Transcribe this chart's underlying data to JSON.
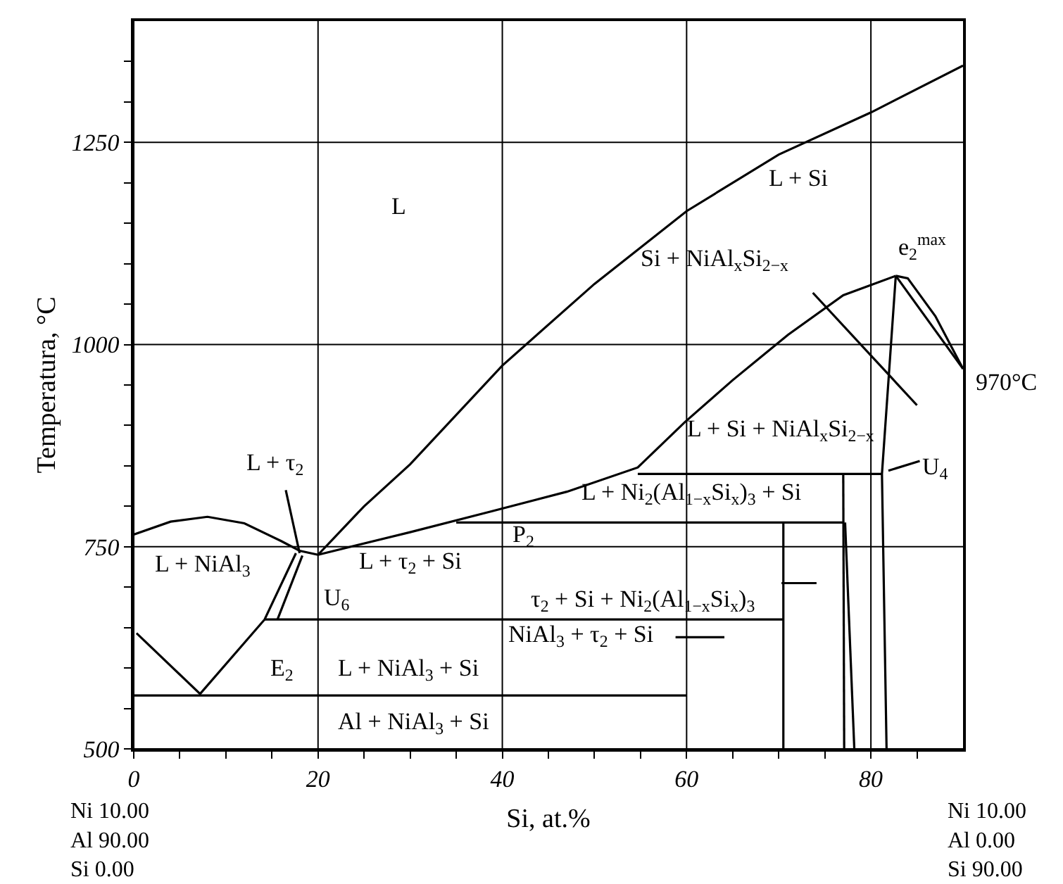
{
  "chart_data": {
    "type": "line",
    "xlabel": "Si, at.%",
    "ylabel": "Temperatura, °C",
    "xlim": [
      0,
      90
    ],
    "ylim": [
      500,
      1400
    ],
    "xticks": [
      0,
      {
        "value": 5,
        "label": null
      },
      {
        "value": 10,
        "label": null
      },
      {
        "value": 15,
        "label": null
      },
      20,
      {
        "value": 25,
        "label": null
      },
      {
        "value": 30,
        "label": null
      },
      {
        "value": 35,
        "label": null
      },
      40,
      {
        "value": 45,
        "label": null
      },
      {
        "value": 50,
        "label": null
      },
      {
        "value": 55,
        "label": null
      },
      60,
      {
        "value": 65,
        "label": null
      },
      {
        "value": 70,
        "label": null
      },
      {
        "value": 75,
        "label": null
      },
      80,
      {
        "value": 85,
        "label": null
      }
    ],
    "yticks": [
      500,
      {
        "value": 550,
        "label": null
      },
      {
        "value": 600,
        "label": null
      },
      {
        "value": 650,
        "label": null
      },
      {
        "value": 700,
        "label": null
      },
      750,
      {
        "value": 800,
        "label": null
      },
      {
        "value": 850,
        "label": null
      },
      {
        "value": 900,
        "label": null
      },
      {
        "value": 950,
        "label": null
      },
      1000,
      {
        "value": 1050,
        "label": null
      },
      {
        "value": 1100,
        "label": null
      },
      {
        "value": 1150,
        "label": null
      },
      {
        "value": 1200,
        "label": null
      },
      1250,
      {
        "value": 1300,
        "label": null
      },
      {
        "value": 1350,
        "label": null
      }
    ],
    "grid": true,
    "marker": "none",
    "line_style": "solid",
    "series": [
      {
        "color": "#000000",
        "x": [
          0,
          4,
          8,
          12,
          16,
          18,
          20
        ],
        "values": [
          765,
          781,
          787,
          779,
          757,
          745,
          740
        ]
      },
      {
        "color": "#000000",
        "x": [
          20,
          25,
          30,
          40,
          50,
          60,
          70,
          80,
          90
        ],
        "values": [
          740,
          800,
          852,
          974,
          1075,
          1165,
          1235,
          1287,
          1345
        ]
      },
      {
        "color": "#000000",
        "x": [
          20,
          30,
          38.9,
          47,
          54.7,
          59.8,
          65,
          71,
          77,
          82.7
        ],
        "values": [
          740,
          768,
          794,
          818,
          848,
          904,
          956,
          1012,
          1061,
          1085
        ]
      },
      {
        "color": "#000000",
        "x": [
          82.7,
          84,
          87,
          90
        ],
        "values": [
          1085,
          1082,
          1035,
          970
        ]
      },
      {
        "color": "#000000",
        "x": [
          82.7,
          90
        ],
        "values": [
          1085,
          970
        ]
      },
      {
        "color": "#000000",
        "x": [
          82.7,
          81.2,
          81.7
        ],
        "values": [
          1085,
          840,
          500
        ]
      },
      {
        "color": "#000000",
        "x": [
          54.7,
          81.2
        ],
        "values": [
          840,
          840
        ]
      },
      {
        "color": "#000000",
        "x": [
          35,
          77.1
        ],
        "values": [
          780,
          780
        ]
      },
      {
        "color": "#000000",
        "x": [
          77,
          77.1
        ],
        "values": [
          840,
          500
        ]
      },
      {
        "color": "#000000",
        "x": [
          77.2,
          78.2
        ],
        "values": [
          780,
          500
        ]
      },
      {
        "color": "#000000",
        "x": [
          70.5,
          70.5
        ],
        "values": [
          780,
          500
        ]
      },
      {
        "color": "#000000",
        "x": [
          14.2,
          70.5
        ],
        "values": [
          660,
          660
        ]
      },
      {
        "color": "#000000",
        "x": [
          0,
          60
        ],
        "values": [
          566,
          566
        ]
      },
      {
        "color": "#000000",
        "x": [
          0.3,
          7.2,
          14.2,
          17.6
        ],
        "values": [
          643,
          568,
          660,
          742
        ]
      },
      {
        "color": "#000000",
        "x": [
          15.6,
          18.3
        ],
        "values": [
          660,
          739
        ]
      },
      {
        "color": "#000000",
        "x": [
          16.5,
          18
        ],
        "values": [
          820,
          742
        ]
      },
      {
        "color": "#000000",
        "x": [
          70.3,
          74.1
        ],
        "values": [
          705,
          705
        ]
      },
      {
        "color": "#000000",
        "x": [
          58.8,
          64.1
        ],
        "values": [
          638,
          638
        ]
      },
      {
        "color": "#000000",
        "x": [
          73.7,
          85
        ],
        "values": [
          1064,
          925
        ]
      },
      {
        "color": "#000000",
        "x": [
          81.9,
          85.3
        ],
        "values": [
          844,
          856
        ]
      }
    ],
    "annotations": [
      "L",
      "L + Si",
      "Si + NiAl$_{x}$Si$_{2−x}$",
      "e$_{2}$$^{max}$",
      "970°C",
      "L + Si + NiAl$_{x}$Si$_{2−x}$",
      "U$_{4}$",
      "L + τ$_{2}$",
      "L + Ni$_{2}$(Al$_{1−x}$Si$_{x}$)$_{3}$ + Si",
      "P$_{2}$",
      "L + NiAl$_{3}$",
      "U$_{6}$",
      "L + τ$_{2}$ + Si",
      "τ$_{2}$ + Si + Ni$_{2}$(Al$_{1−x}$Si$_{x}$)$_{3}$",
      "NiAl$_{3}$ + τ$_{2}$ + Si",
      "E$_{2}$",
      "L + NiAl$_{3}$ + Si",
      "Al + NiAl$_{3}$ + Si",
      "Ni 10.00\nAl 90.00\nSi 0.00",
      "Ni 10.00\nAl 0.00\nSi 90.00"
    ]
  }
}
